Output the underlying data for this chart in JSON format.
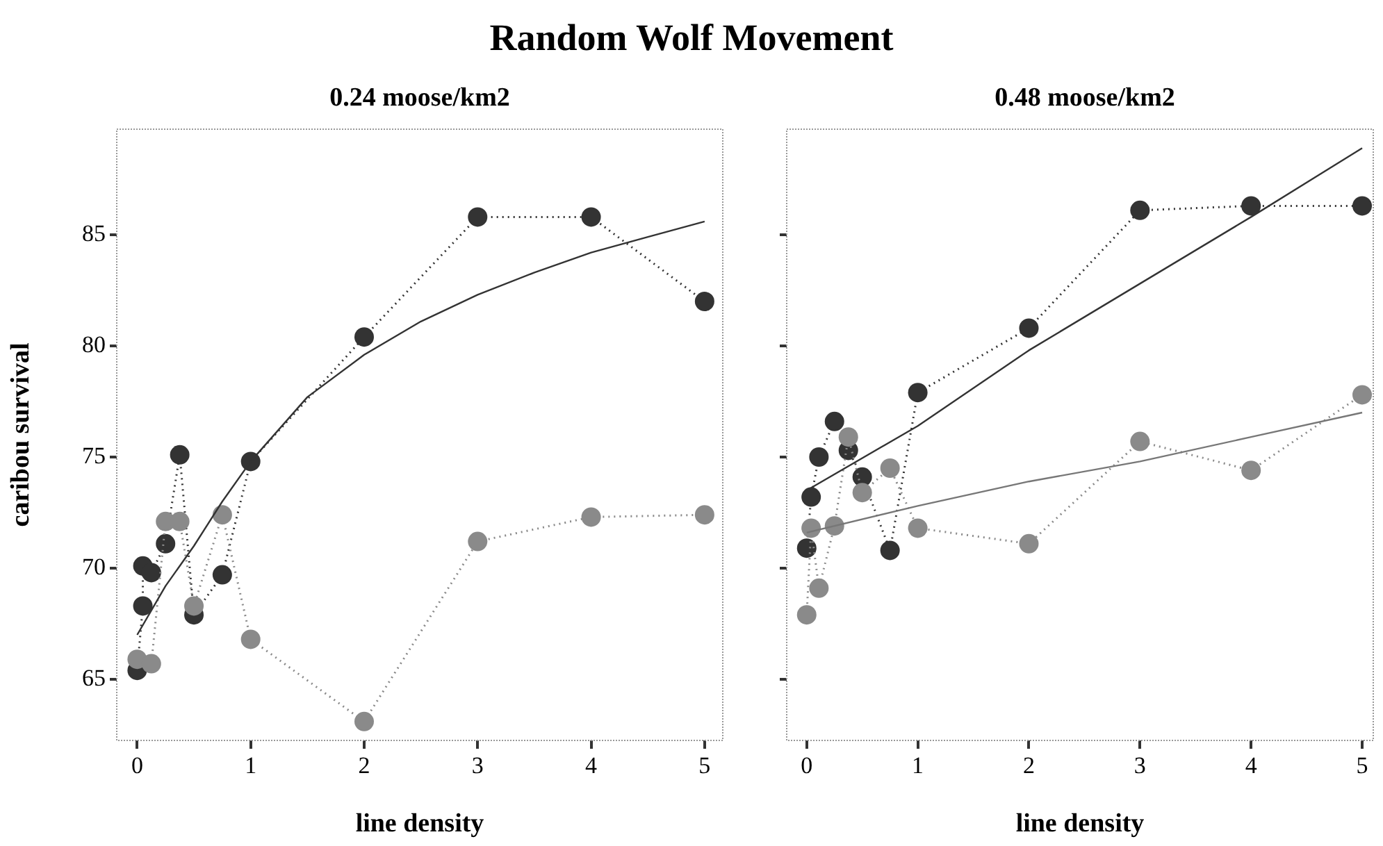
{
  "chart_data": [
    {
      "type": "line",
      "title": "0.24 moose/km2",
      "xlabel": "line density",
      "ylabel": "caribou survival",
      "annotations": [
        "Random Wolf Movement"
      ],
      "xlim": [
        -0.18,
        5.16
      ],
      "xticks": [
        0,
        1,
        2,
        3,
        4,
        5
      ],
      "ylim": [
        62.25,
        89.75
      ],
      "yticks": [
        65,
        70,
        75,
        80,
        85
      ],
      "grid": false,
      "legend": false,
      "series": [
        {
          "color": "#333333",
          "marker": "circle",
          "line_style": "dotted",
          "x": [
            0,
            0.05,
            0.05,
            0.125,
            0.25,
            0.375,
            0.5,
            0.75,
            1,
            2,
            3,
            4,
            5
          ],
          "values": [
            65.4,
            68.3,
            70.1,
            69.8,
            71.1,
            75.1,
            67.9,
            69.7,
            74.8,
            80.4,
            85.8,
            85.8,
            82.0
          ]
        },
        {
          "color": "#8a8a8a",
          "marker": "circle",
          "line_style": "dotted",
          "x": [
            0,
            0.125,
            0.25,
            0.375,
            0.5,
            0.75,
            1,
            2,
            3,
            4,
            5
          ],
          "values": [
            65.9,
            65.7,
            72.1,
            72.1,
            68.3,
            72.4,
            66.8,
            63.1,
            71.2,
            72.3,
            72.4
          ]
        },
        {
          "color": "#333333",
          "marker": "none",
          "line_style": "solid",
          "x": [
            0,
            0.25,
            0.5,
            0.75,
            1,
            1.5,
            2,
            2.5,
            3,
            3.5,
            4,
            4.5,
            5
          ],
          "values": [
            67.0,
            69.2,
            71.0,
            73.0,
            74.8,
            77.7,
            79.6,
            81.1,
            82.3,
            83.3,
            84.2,
            84.9,
            85.6
          ]
        }
      ]
    },
    {
      "type": "line",
      "title": "0.48 moose/km2",
      "xlabel": "line density",
      "xlim": [
        -0.18,
        5.1
      ],
      "xticks": [
        0,
        1,
        2,
        3,
        4,
        5
      ],
      "ylim": [
        62.25,
        89.75
      ],
      "yticks": [
        65,
        70,
        75,
        80,
        85
      ],
      "tick_labels": "x",
      "grid": false,
      "legend": false,
      "series": [
        {
          "color": "#333333",
          "marker": "circle",
          "line_style": "dotted",
          "x": [
            0,
            0.04,
            0.11,
            0.25,
            0.375,
            0.5,
            0.75,
            1,
            2,
            3,
            4,
            5
          ],
          "values": [
            70.9,
            73.2,
            75.0,
            76.6,
            75.3,
            74.1,
            70.8,
            77.9,
            80.8,
            86.1,
            86.3,
            86.3
          ]
        },
        {
          "color": "#8a8a8a",
          "marker": "circle",
          "line_style": "dotted",
          "x": [
            0,
            0.04,
            0.11,
            0.25,
            0.375,
            0.5,
            0.75,
            1,
            2,
            3,
            4,
            5
          ],
          "values": [
            67.9,
            71.8,
            69.1,
            71.9,
            75.9,
            73.4,
            74.5,
            71.8,
            71.1,
            75.7,
            74.4,
            77.8
          ]
        },
        {
          "color": "#333333",
          "marker": "none",
          "line_style": "solid",
          "x": [
            0,
            1,
            2,
            3,
            4,
            5
          ],
          "values": [
            73.5,
            76.4,
            79.8,
            82.8,
            85.8,
            88.9
          ]
        },
        {
          "color": "#777777",
          "marker": "none",
          "line_style": "solid",
          "x": [
            0,
            1,
            2,
            3,
            4,
            5
          ],
          "values": [
            71.6,
            72.8,
            73.9,
            74.8,
            75.9,
            77.0
          ]
        }
      ]
    }
  ]
}
